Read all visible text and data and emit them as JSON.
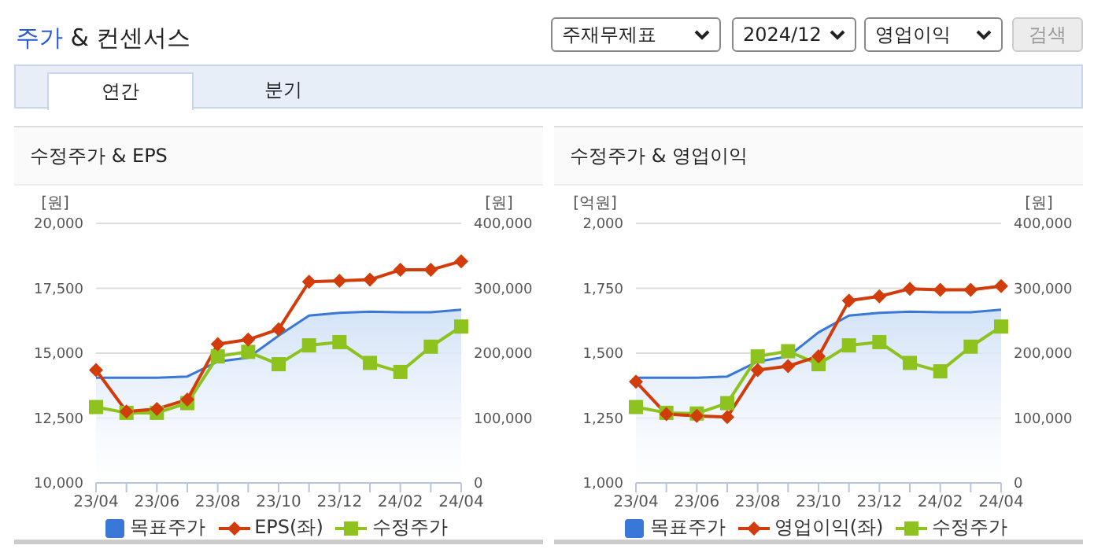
{
  "chart_data": [
    {
      "type": "line",
      "title": "수정주가 & EPS",
      "ylabel": "[원]",
      "y2label": "[원]",
      "annotations": [
        "주가 & 컨센서스",
        "주재무제표",
        "2024/12",
        "영업이익",
        "검색",
        "연간",
        "분기"
      ],
      "categories": [
        "23/04",
        null,
        "23/06",
        null,
        "23/08",
        null,
        "23/10",
        null,
        "23/12",
        null,
        "24/02",
        null,
        "24/04"
      ],
      "series": [
        {
          "name": "목표주가",
          "type": "area",
          "axis": "y2",
          "marker": "none",
          "color": "#3a78d8",
          "values": [
            162000,
            162000,
            162000,
            164000,
            187000,
            193000,
            227000,
            258000,
            262000,
            264000,
            263000,
            263000,
            267000
          ]
        },
        {
          "name": "EPS(좌)",
          "type": "line",
          "axis": "y",
          "marker": "diamond",
          "color": "#d23c0a",
          "values": [
            14350,
            12750,
            12850,
            13210,
            15350,
            15520,
            15920,
            17750,
            17790,
            17830,
            18210,
            18210,
            18540
          ]
        },
        {
          "name": "수정주가",
          "type": "line",
          "axis": "y2",
          "marker": "square",
          "color": "#8dc21f",
          "values": [
            117000,
            108000,
            108000,
            123000,
            195000,
            202000,
            183000,
            212000,
            217000,
            185000,
            171000,
            210000,
            241000
          ]
        }
      ],
      "ylim": [
        10000,
        20000
      ],
      "yticks": [
        {
          "value": 10000,
          "label": "10,000"
        },
        {
          "value": 12500,
          "label": "12,500"
        },
        {
          "value": 15000,
          "label": "15,000"
        },
        {
          "value": 17500,
          "label": "17,500"
        },
        {
          "value": 20000,
          "label": "20,000"
        }
      ],
      "y2lim": [
        0,
        400000
      ],
      "y2ticks": [
        0,
        {
          "value": 100000,
          "label": "100,000"
        },
        {
          "value": 200000,
          "label": "200,000"
        },
        {
          "value": 300000,
          "label": "300,000"
        },
        {
          "value": 400000,
          "label": "400,000"
        }
      ],
      "grid": "y",
      "legend": "bottom"
    },
    {
      "type": "line",
      "title": "수정주가 & 영업이익",
      "ylabel": "[억원]",
      "y2label": "[원]",
      "categories": [
        "23/04",
        null,
        "23/06",
        null,
        "23/08",
        null,
        "23/10",
        null,
        "23/12",
        null,
        "24/02",
        null,
        "24/04"
      ],
      "series": [
        {
          "name": "목표주가",
          "type": "area",
          "axis": "y2",
          "marker": "none",
          "color": "#3a78d8",
          "values": [
            162000,
            162000,
            162000,
            164000,
            187000,
            195000,
            232000,
            258000,
            262000,
            264000,
            263000,
            263000,
            267000
          ]
        },
        {
          "name": "영업이익(좌)",
          "type": "line",
          "axis": "y",
          "marker": "diamond",
          "color": "#d23c0a",
          "values": [
            1390,
            1265,
            1258,
            1254,
            1435,
            1450,
            1488,
            1702,
            1719,
            1748,
            1744,
            1744,
            1758
          ]
        },
        {
          "name": "수정주가",
          "type": "line",
          "axis": "y2",
          "marker": "square",
          "color": "#8dc21f",
          "values": [
            117000,
            108000,
            107000,
            123000,
            195000,
            203000,
            183000,
            212000,
            217000,
            185000,
            172000,
            210000,
            241000
          ]
        }
      ],
      "ylim": [
        1000,
        2000
      ],
      "yticks": [
        {
          "value": 1000,
          "label": "1,000"
        },
        {
          "value": 1250,
          "label": "1,250"
        },
        {
          "value": 1500,
          "label": "1,500"
        },
        {
          "value": 1750,
          "label": "1,750"
        },
        {
          "value": 2000,
          "label": "2,000"
        }
      ],
      "y2lim": [
        0,
        400000
      ],
      "y2ticks": [
        0,
        {
          "value": 100000,
          "label": "100,000"
        },
        {
          "value": 200000,
          "label": "200,000"
        },
        {
          "value": 300000,
          "label": "300,000"
        },
        {
          "value": 400000,
          "label": "400,000"
        }
      ],
      "grid": "y",
      "legend": "bottom"
    }
  ]
}
